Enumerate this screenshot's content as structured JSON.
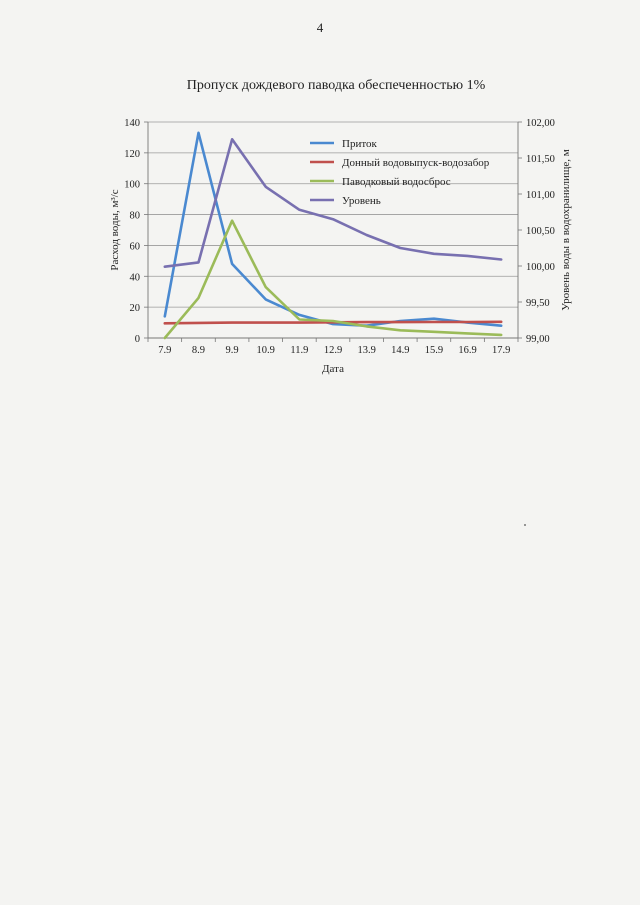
{
  "page": {
    "number": "4"
  },
  "chart_data": {
    "type": "line",
    "title": "Пропуск дождевого паводка обеспеченностью 1%",
    "xlabel": "Дата",
    "ylabel_left": "Расход воды, м³/с",
    "ylabel_right": "Уровень воды в водохранилище, м",
    "categories": [
      "7.9",
      "8.9",
      "9.9",
      "10.9",
      "11.9",
      "12.9",
      "13.9",
      "14.9",
      "15.9",
      "16.9",
      "17.9"
    ],
    "ylim_left": [
      0,
      140
    ],
    "yticks_left": [
      "0",
      "20",
      "40",
      "60",
      "80",
      "100",
      "120",
      "140"
    ],
    "ylim_right": [
      99.0,
      102.0
    ],
    "yticks_right": [
      "99,00",
      "99,50",
      "100,00",
      "100,50",
      "101,00",
      "101,50",
      "102,00"
    ],
    "grid": true,
    "legend_position": "top-right inside plot",
    "series": [
      {
        "name": "Приток",
        "axis": "left",
        "color": "#4a89d0",
        "values": [
          14,
          133,
          48,
          25,
          15,
          9,
          8,
          11,
          12.5,
          10,
          8
        ]
      },
      {
        "name": "Донный водовыпуск-водозабор",
        "axis": "left",
        "color": "#c0504d",
        "values": [
          9.5,
          9.8,
          10,
          10,
          10,
          10.2,
          10.3,
          10.3,
          10.4,
          10.4,
          10.5
        ]
      },
      {
        "name": "Паводковый водосброс",
        "axis": "left",
        "color": "#9bbb59",
        "values": [
          0,
          26,
          76,
          33,
          12,
          11,
          7.5,
          5,
          4,
          3,
          2
        ]
      },
      {
        "name": "Уровень",
        "axis": "right",
        "color": "#7870b0",
        "values": [
          99.99,
          100.05,
          101.76,
          101.1,
          100.78,
          100.65,
          100.43,
          100.25,
          100.17,
          100.14,
          100.09
        ]
      }
    ]
  }
}
